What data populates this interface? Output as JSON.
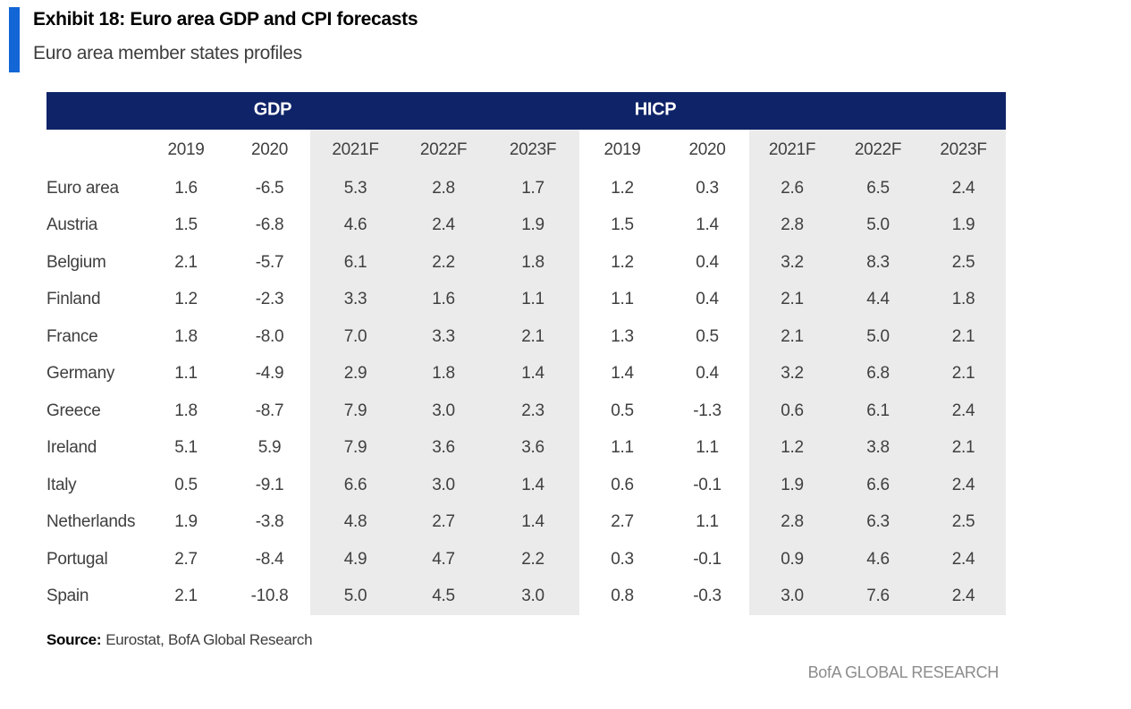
{
  "header": {
    "title": "Exhibit 18: Euro area GDP and CPI forecasts",
    "subtitle": "Euro area member states profiles"
  },
  "table": {
    "group_headers": [
      "GDP",
      "HICP"
    ],
    "year_headers": [
      "2019",
      "2020",
      "2021F",
      "2022F",
      "2023F",
      "2019",
      "2020",
      "2021F",
      "2022F",
      "2023F"
    ],
    "rows": [
      {
        "label": "Euro area",
        "gdp": [
          "1.6",
          "-6.5",
          "5.3",
          "2.8",
          "1.7"
        ],
        "hicp": [
          "1.2",
          "0.3",
          "2.6",
          "6.5",
          "2.4"
        ]
      },
      {
        "label": "Austria",
        "gdp": [
          "1.5",
          "-6.8",
          "4.6",
          "2.4",
          "1.9"
        ],
        "hicp": [
          "1.5",
          "1.4",
          "2.8",
          "5.0",
          "1.9"
        ]
      },
      {
        "label": "Belgium",
        "gdp": [
          "2.1",
          "-5.7",
          "6.1",
          "2.2",
          "1.8"
        ],
        "hicp": [
          "1.2",
          "0.4",
          "3.2",
          "8.3",
          "2.5"
        ]
      },
      {
        "label": "Finland",
        "gdp": [
          "1.2",
          "-2.3",
          "3.3",
          "1.6",
          "1.1"
        ],
        "hicp": [
          "1.1",
          "0.4",
          "2.1",
          "4.4",
          "1.8"
        ]
      },
      {
        "label": "France",
        "gdp": [
          "1.8",
          "-8.0",
          "7.0",
          "3.3",
          "2.1"
        ],
        "hicp": [
          "1.3",
          "0.5",
          "2.1",
          "5.0",
          "2.1"
        ]
      },
      {
        "label": "Germany",
        "gdp": [
          "1.1",
          "-4.9",
          "2.9",
          "1.8",
          "1.4"
        ],
        "hicp": [
          "1.4",
          "0.4",
          "3.2",
          "6.8",
          "2.1"
        ]
      },
      {
        "label": "Greece",
        "gdp": [
          "1.8",
          "-8.7",
          "7.9",
          "3.0",
          "2.3"
        ],
        "hicp": [
          "0.5",
          "-1.3",
          "0.6",
          "6.1",
          "2.4"
        ]
      },
      {
        "label": "Ireland",
        "gdp": [
          "5.1",
          "5.9",
          "7.9",
          "3.6",
          "3.6"
        ],
        "hicp": [
          "1.1",
          "1.1",
          "1.2",
          "3.8",
          "2.1"
        ]
      },
      {
        "label": "Italy",
        "gdp": [
          "0.5",
          "-9.1",
          "6.6",
          "3.0",
          "1.4"
        ],
        "hicp": [
          "0.6",
          "-0.1",
          "1.9",
          "6.6",
          "2.4"
        ]
      },
      {
        "label": "Netherlands",
        "gdp": [
          "1.9",
          "-3.8",
          "4.8",
          "2.7",
          "1.4"
        ],
        "hicp": [
          "2.7",
          "1.1",
          "2.8",
          "6.3",
          "2.5"
        ]
      },
      {
        "label": "Portugal",
        "gdp": [
          "2.7",
          "-8.4",
          "4.9",
          "4.7",
          "2.2"
        ],
        "hicp": [
          "0.3",
          "-0.1",
          "0.9",
          "4.6",
          "2.4"
        ]
      },
      {
        "label": "Spain",
        "gdp": [
          "2.1",
          "-10.8",
          "5.0",
          "4.5",
          "3.0"
        ],
        "hicp": [
          "0.8",
          "-0.3",
          "3.0",
          "7.6",
          "2.4"
        ]
      }
    ]
  },
  "footer": {
    "source_label": "Source:",
    "source_text": "Eurostat, BofA Global Research",
    "brand": "BofA GLOBAL RESEARCH"
  },
  "colors": {
    "header_navy": "#0f2368",
    "accent_blue": "#1266d6",
    "forecast_shade_gray": "#ebebeb",
    "body_text": "#3f3f3f",
    "brand_gray": "#8c8c8c"
  }
}
